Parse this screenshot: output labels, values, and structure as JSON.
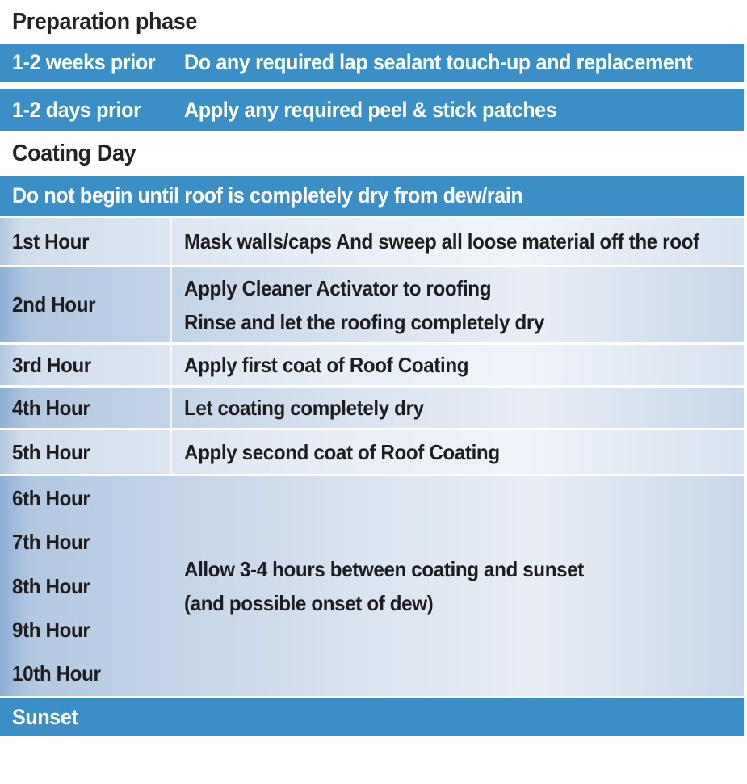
{
  "colors": {
    "accent_blue": "#3B8FC6",
    "row_light": "#e8eef6",
    "row_dark": "#b2c8e1",
    "text_dark": "#1d1d1f",
    "text_on_blue": "#ffffff"
  },
  "prep": {
    "header": "Preparation phase",
    "rows": [
      {
        "time": "1-2 weeks prior",
        "task": "Do any required lap sealant touch-up and replacement"
      },
      {
        "time": "1-2 days prior",
        "task": "Apply any required peel & stick patches"
      }
    ]
  },
  "coating": {
    "header": "Coating Day",
    "banner": "Do not begin until roof is completely dry from dew/rain",
    "rows": [
      {
        "time": "1st Hour",
        "task": "Mask walls/caps And sweep all loose material off the roof"
      },
      {
        "time": "2nd Hour",
        "task_lines": [
          "Apply Cleaner Activator to roofing",
          "Rinse and let the roofing completely dry"
        ]
      },
      {
        "time": "3rd Hour",
        "task": "Apply first coat of Roof Coating"
      },
      {
        "time": "4th Hour",
        "task": "Let coating completely dry"
      },
      {
        "time": "5th Hour",
        "task": "Apply second coat of Roof Coating"
      }
    ],
    "wait_block": {
      "hours": [
        "6th Hour",
        "7th Hour",
        "8th Hour",
        "9th Hour",
        "10th Hour"
      ],
      "note_lines": [
        "Allow 3-4 hours between coating and sunset",
        "(and possible onset of dew)"
      ]
    },
    "sunset": "Sunset"
  }
}
